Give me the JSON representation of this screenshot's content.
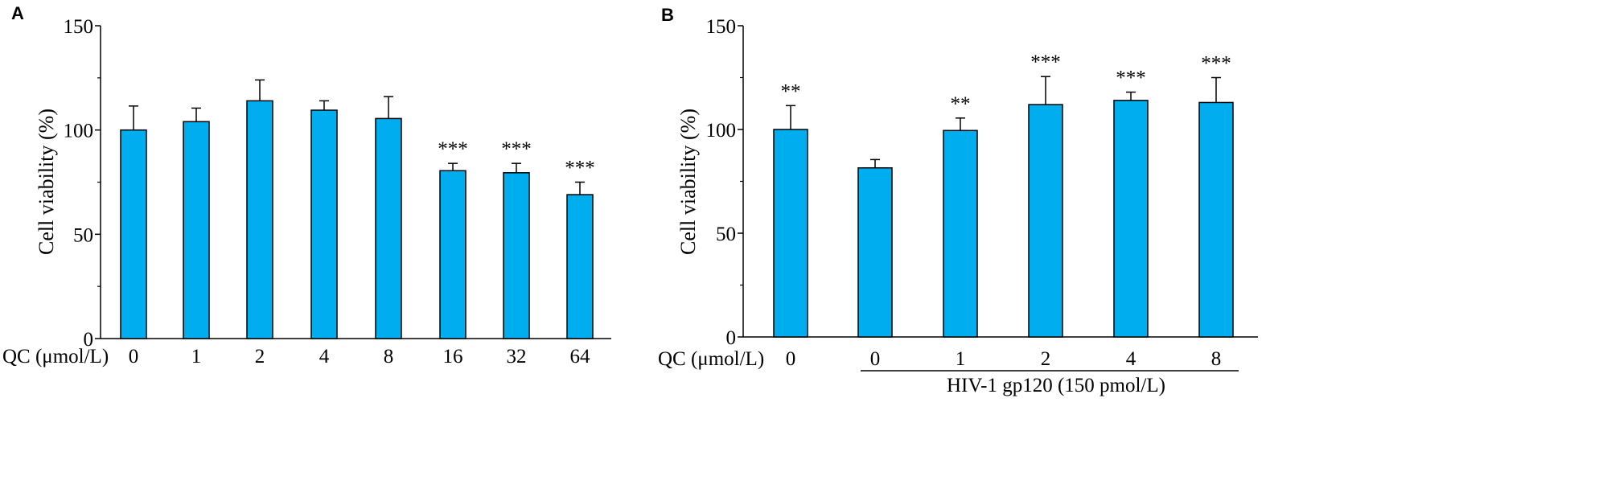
{
  "colors": {
    "bar": "#00aeef",
    "stroke": "#000000"
  },
  "chart_data": [
    {
      "panel": "A",
      "type": "bar",
      "ylabel": "Cell viability (%)",
      "xlabel": "QC (μmol/L)",
      "ylim": [
        0,
        150
      ],
      "yticks": [
        "0",
        "50",
        "100",
        "150"
      ],
      "categories": [
        "0",
        "1",
        "2",
        "4",
        "8",
        "16",
        "32",
        "64"
      ],
      "values": [
        100,
        104,
        114,
        109.5,
        105.5,
        80.5,
        79.5,
        69
      ],
      "errors": [
        11.5,
        6.5,
        10,
        4.5,
        10.5,
        3.5,
        4.5,
        6
      ],
      "annotations": [
        "",
        "",
        "",
        "",
        "",
        "***",
        "***",
        "***"
      ]
    },
    {
      "panel": "B",
      "type": "bar",
      "ylabel": "Cell viability (%)",
      "xlabel": "QC (μmol/L)",
      "ylim": [
        0,
        150
      ],
      "yticks": [
        "0",
        "50",
        "100",
        "150"
      ],
      "categories": [
        "0",
        "0",
        "1",
        "2",
        "4",
        "8"
      ],
      "values": [
        100,
        81.5,
        99.5,
        112,
        114,
        113
      ],
      "errors": [
        11.5,
        4,
        6,
        13.5,
        4,
        12
      ],
      "annotations": [
        "**",
        "",
        "**",
        "***",
        "***",
        "***"
      ],
      "group_label": "HIV-1 gp120 (150 pmol/L)"
    }
  ]
}
